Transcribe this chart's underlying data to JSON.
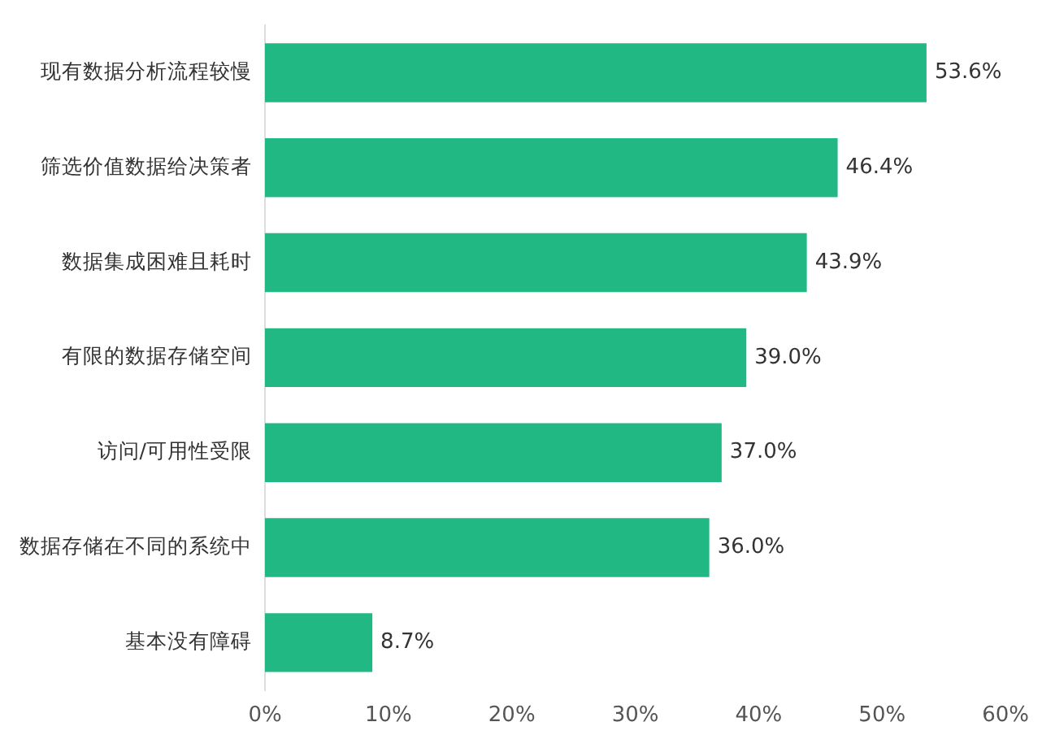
{
  "chart_data": {
    "type": "bar",
    "orientation": "horizontal",
    "categories": [
      "现有数据分析流程较慢",
      "筛选价值数据给决策者",
      "数据集成困难且耗时",
      "有限的数据存储空间",
      "访问/可用性受限",
      "数据存储在不同的系统中",
      "基本没有障碍"
    ],
    "values": [
      53.6,
      46.4,
      43.9,
      39.0,
      37.0,
      36.0,
      8.7
    ],
    "value_labels": [
      "53.6%",
      "46.4%",
      "43.9%",
      "39.0%",
      "37.0%",
      "36.0%",
      "8.7%"
    ],
    "color": "#22b884",
    "xlim": [
      0,
      60
    ],
    "xticks": [
      {
        "value": 0,
        "label": "0%"
      },
      {
        "value": 10,
        "label": "10%"
      },
      {
        "value": 20,
        "label": "20%"
      },
      {
        "value": 30,
        "label": "30%"
      },
      {
        "value": 40,
        "label": "40%"
      },
      {
        "value": 50,
        "label": "50%"
      },
      {
        "value": 60,
        "label": "60%"
      }
    ],
    "grid": false,
    "legend": false
  }
}
